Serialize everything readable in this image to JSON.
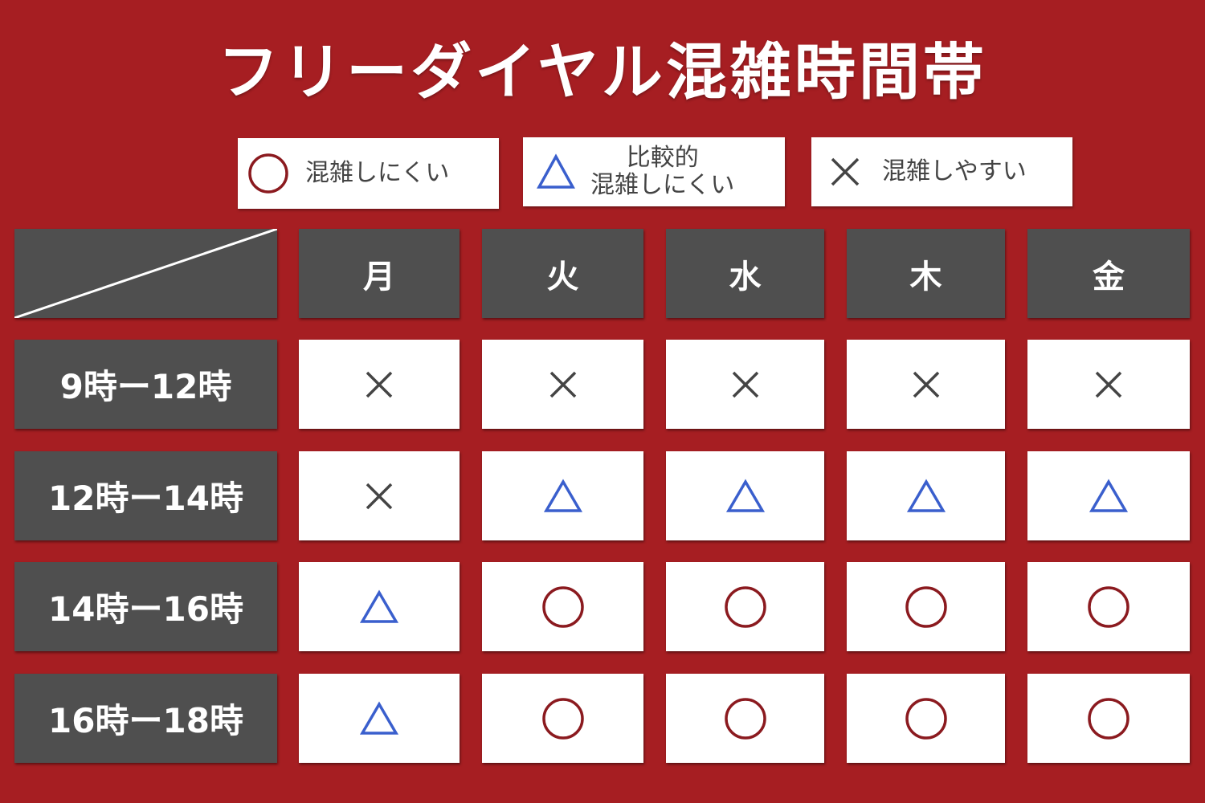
{
  "title": "フリーダイヤル混雑時間帯",
  "colors": {
    "background": "#a61e22",
    "header_cell": "#4f4f4f",
    "circle": "#8b1a1f",
    "triangle": "#3a5fcd",
    "cross": "#444444"
  },
  "legend": [
    {
      "symbol": "circle",
      "label": "混雑しにくい"
    },
    {
      "symbol": "triangle",
      "label_line1": "比較的",
      "label_line2": "混雑しにくい"
    },
    {
      "symbol": "cross",
      "label": "混雑しやすい"
    }
  ],
  "days": [
    "月",
    "火",
    "水",
    "木",
    "金"
  ],
  "rows": [
    {
      "time": "9時ー12時",
      "values": [
        "cross",
        "cross",
        "cross",
        "cross",
        "cross"
      ]
    },
    {
      "time": "12時ー14時",
      "values": [
        "cross",
        "triangle",
        "triangle",
        "triangle",
        "triangle"
      ]
    },
    {
      "time": "14時ー16時",
      "values": [
        "triangle",
        "circle",
        "circle",
        "circle",
        "circle"
      ]
    },
    {
      "time": "16時ー18時",
      "values": [
        "triangle",
        "circle",
        "circle",
        "circle",
        "circle"
      ]
    }
  ]
}
